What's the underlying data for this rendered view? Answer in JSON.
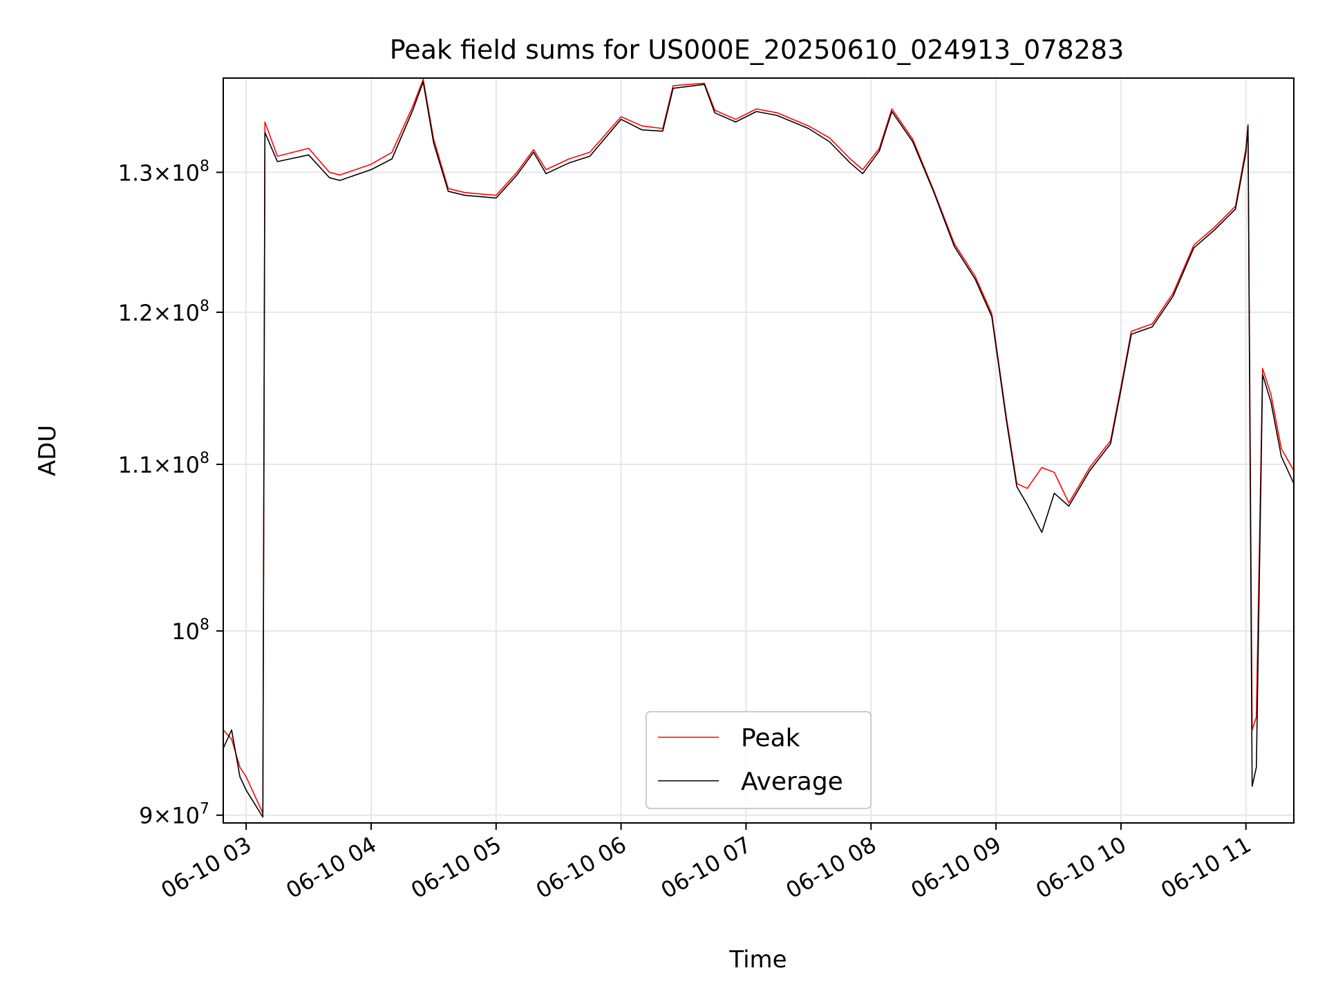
{
  "chart_data": {
    "type": "line",
    "title": "Peak field sums for US000E_20250610_024913_078283",
    "xlabel": "Time",
    "ylabel": "ADU",
    "y_scale": "log",
    "ylim": [
      89600000,
      137200000
    ],
    "xlim": [
      "2025-06-10 02:49",
      "2025-06-10 11:23"
    ],
    "grid": true,
    "legend_position": "lower center",
    "x_ticks": [
      {
        "value": "2025-06-10 03:00",
        "label": "06-10 03"
      },
      {
        "value": "2025-06-10 04:00",
        "label": "06-10 04"
      },
      {
        "value": "2025-06-10 05:00",
        "label": "06-10 05"
      },
      {
        "value": "2025-06-10 06:00",
        "label": "06-10 06"
      },
      {
        "value": "2025-06-10 07:00",
        "label": "06-10 07"
      },
      {
        "value": "2025-06-10 08:00",
        "label": "06-10 08"
      },
      {
        "value": "2025-06-10 09:00",
        "label": "06-10 09"
      },
      {
        "value": "2025-06-10 10:00",
        "label": "06-10 10"
      },
      {
        "value": "2025-06-10 11:00",
        "label": "06-10 11"
      }
    ],
    "y_ticks": [
      {
        "value": 90000000,
        "mantissa": "9",
        "exponent": "7"
      },
      {
        "value": 100000000,
        "mantissa": "",
        "exponent": "8"
      },
      {
        "value": 110000000,
        "mantissa": "1.1",
        "exponent": "8"
      },
      {
        "value": 120000000,
        "mantissa": "1.2",
        "exponent": "8"
      },
      {
        "value": 130000000,
        "mantissa": "1.3",
        "exponent": "8"
      }
    ],
    "series": [
      {
        "name": "Peak",
        "color": "#ff0000",
        "x": [
          "2025-06-10 02:49",
          "2025-06-10 02:53",
          "2025-06-10 02:57",
          "2025-06-10 03:00",
          "2025-06-10 03:08",
          "2025-06-10 03:09",
          "2025-06-10 03:15",
          "2025-06-10 03:30",
          "2025-06-10 03:40",
          "2025-06-10 03:45",
          "2025-06-10 04:00",
          "2025-06-10 04:10",
          "2025-06-10 04:20",
          "2025-06-10 04:25",
          "2025-06-10 04:30",
          "2025-06-10 04:37",
          "2025-06-10 04:45",
          "2025-06-10 05:00",
          "2025-06-10 05:10",
          "2025-06-10 05:18",
          "2025-06-10 05:24",
          "2025-06-10 05:35",
          "2025-06-10 05:45",
          "2025-06-10 06:00",
          "2025-06-10 06:10",
          "2025-06-10 06:20",
          "2025-06-10 06:25",
          "2025-06-10 06:40",
          "2025-06-10 06:45",
          "2025-06-10 06:55",
          "2025-06-10 07:05",
          "2025-06-10 07:15",
          "2025-06-10 07:30",
          "2025-06-10 07:40",
          "2025-06-10 07:50",
          "2025-06-10 07:56",
          "2025-06-10 08:04",
          "2025-06-10 08:10",
          "2025-06-10 08:20",
          "2025-06-10 08:30",
          "2025-06-10 08:40",
          "2025-06-10 08:50",
          "2025-06-10 08:58",
          "2025-06-10 09:05",
          "2025-06-10 09:10",
          "2025-06-10 09:15",
          "2025-06-10 09:22",
          "2025-06-10 09:28",
          "2025-06-10 09:35",
          "2025-06-10 09:45",
          "2025-06-10 09:55",
          "2025-06-10 10:00",
          "2025-06-10 10:05",
          "2025-06-10 10:15",
          "2025-06-10 10:25",
          "2025-06-10 10:35",
          "2025-06-10 10:45",
          "2025-06-10 10:55",
          "2025-06-10 11:00",
          "2025-06-10 11:01",
          "2025-06-10 11:03",
          "2025-06-10 11:05",
          "2025-06-10 11:08",
          "2025-06-10 11:12",
          "2025-06-10 11:17",
          "2025-06-10 11:23"
        ],
        "values": [
          94500000,
          94000000,
          92500000,
          92000000,
          90100000,
          133800000,
          131200000,
          131800000,
          130000000,
          129800000,
          130600000,
          131500000,
          135000000,
          137100000,
          132500000,
          128800000,
          128500000,
          128300000,
          130000000,
          131700000,
          130200000,
          131000000,
          131500000,
          134200000,
          133500000,
          133300000,
          136600000,
          136800000,
          134700000,
          134000000,
          134800000,
          134500000,
          133500000,
          132600000,
          131000000,
          130200000,
          131800000,
          134800000,
          132500000,
          128700000,
          124800000,
          122500000,
          119900000,
          113000000,
          108800000,
          108500000,
          109800000,
          109500000,
          107600000,
          109800000,
          111500000,
          115000000,
          118700000,
          119200000,
          121300000,
          124700000,
          126000000,
          127500000,
          131800000,
          133600000,
          94500000,
          95200000,
          116200000,
          114500000,
          111000000,
          109600000
        ]
      },
      {
        "name": "Average",
        "color": "#000000",
        "x": [
          "2025-06-10 02:49",
          "2025-06-10 02:53",
          "2025-06-10 02:57",
          "2025-06-10 03:00",
          "2025-06-10 03:08",
          "2025-06-10 03:09",
          "2025-06-10 03:15",
          "2025-06-10 03:30",
          "2025-06-10 03:40",
          "2025-06-10 03:45",
          "2025-06-10 04:00",
          "2025-06-10 04:10",
          "2025-06-10 04:20",
          "2025-06-10 04:25",
          "2025-06-10 04:30",
          "2025-06-10 04:37",
          "2025-06-10 04:45",
          "2025-06-10 05:00",
          "2025-06-10 05:10",
          "2025-06-10 05:18",
          "2025-06-10 05:24",
          "2025-06-10 05:35",
          "2025-06-10 05:45",
          "2025-06-10 06:00",
          "2025-06-10 06:10",
          "2025-06-10 06:20",
          "2025-06-10 06:25",
          "2025-06-10 06:40",
          "2025-06-10 06:45",
          "2025-06-10 06:55",
          "2025-06-10 07:05",
          "2025-06-10 07:15",
          "2025-06-10 07:30",
          "2025-06-10 07:40",
          "2025-06-10 07:50",
          "2025-06-10 07:56",
          "2025-06-10 08:04",
          "2025-06-10 08:10",
          "2025-06-10 08:20",
          "2025-06-10 08:30",
          "2025-06-10 08:40",
          "2025-06-10 08:50",
          "2025-06-10 08:58",
          "2025-06-10 09:05",
          "2025-06-10 09:10",
          "2025-06-10 09:15",
          "2025-06-10 09:22",
          "2025-06-10 09:28",
          "2025-06-10 09:35",
          "2025-06-10 09:45",
          "2025-06-10 09:55",
          "2025-06-10 10:00",
          "2025-06-10 10:05",
          "2025-06-10 10:15",
          "2025-06-10 10:25",
          "2025-06-10 10:35",
          "2025-06-10 10:45",
          "2025-06-10 10:55",
          "2025-06-10 11:00",
          "2025-06-10 11:01",
          "2025-06-10 11:03",
          "2025-06-10 11:05",
          "2025-06-10 11:08",
          "2025-06-10 11:12",
          "2025-06-10 11:17",
          "2025-06-10 11:23"
        ],
        "values": [
          93500000,
          94500000,
          92000000,
          91300000,
          89900000,
          133000000,
          130800000,
          131300000,
          129600000,
          129400000,
          130200000,
          131000000,
          134700000,
          136900000,
          132200000,
          128600000,
          128300000,
          128100000,
          129800000,
          131500000,
          129900000,
          130700000,
          131200000,
          134000000,
          133200000,
          133100000,
          136400000,
          136700000,
          134500000,
          133800000,
          134600000,
          134300000,
          133300000,
          132300000,
          130700000,
          129900000,
          131600000,
          134600000,
          132300000,
          128600000,
          124600000,
          122300000,
          119700000,
          112800000,
          108600000,
          107500000,
          105800000,
          108200000,
          107400000,
          109600000,
          111300000,
          114800000,
          118500000,
          119000000,
          121100000,
          124500000,
          125800000,
          127300000,
          131500000,
          133500000,
          91500000,
          92500000,
          115800000,
          114000000,
          110500000,
          108800000
        ]
      }
    ]
  }
}
